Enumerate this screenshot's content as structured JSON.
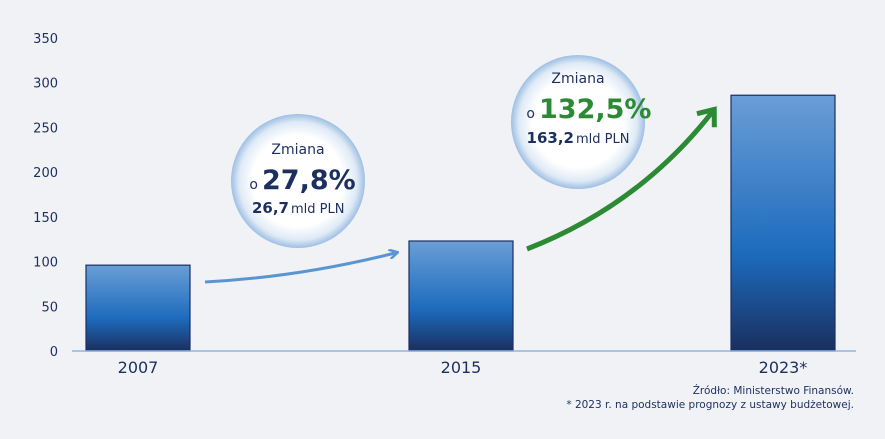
{
  "chart_data": {
    "type": "bar",
    "categories": [
      "2007",
      "2015",
      "2023*"
    ],
    "values": [
      96,
      123,
      286
    ],
    "ylim": [
      0,
      350
    ],
    "yticks": [
      0,
      50,
      100,
      150,
      200,
      250,
      300,
      350
    ],
    "grid": false,
    "title": "",
    "xlabel": "",
    "ylabel": "",
    "annotations": [
      {
        "label": "Zmiana",
        "prefix": "o",
        "percent": "27,8%",
        "amount": "26,7",
        "unit": "mld PLN",
        "color": "#1c2f5e"
      },
      {
        "label": "Zmiana",
        "prefix": "o",
        "percent": "132,5%",
        "amount": "163,2",
        "unit": "mld PLN",
        "color": "#2d8a34"
      }
    ]
  },
  "footer": {
    "source": "Źródło: Ministerstwo Finansów.",
    "note": "* 2023 r. na podstawie prognozy z ustawy budżetowej."
  },
  "colors": {
    "background": "#f1f2f6",
    "bar_top": "#6a9ed6",
    "bar_mid": "#1d6bbd",
    "bar_bottom": "#1a2f5f",
    "axis": "#8fb4e0",
    "text": "#1c2f5e",
    "arrow_blue": "#5b95d1",
    "arrow_green": "#2d8a34"
  }
}
